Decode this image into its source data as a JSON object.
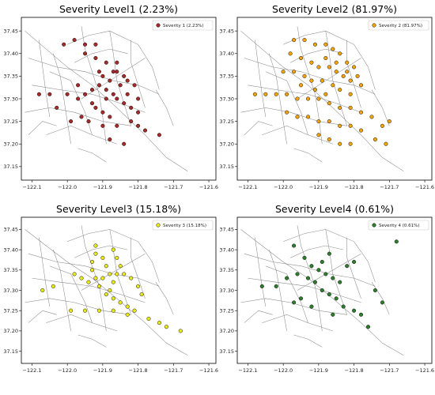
{
  "chart_data": [
    {
      "type": "scatter",
      "title": "Severity Level1 (2.23%)",
      "legend": "Severity 1 (2.23%)",
      "legend_position": "top-right",
      "color": "#a52a2a",
      "xlim": [
        -122.13,
        -121.58
      ],
      "ylim": [
        37.12,
        37.48
      ],
      "x_ticks": [
        "-122.1",
        "-122.0",
        "-121.9",
        "-121.8",
        "-121.7",
        "-121.6"
      ],
      "y_ticks": [
        "37.15",
        "37.20",
        "37.25",
        "37.30",
        "37.35",
        "37.40",
        "37.45"
      ],
      "grid": false,
      "points": [
        {
          "x": -122.01,
          "y": 37.42
        },
        {
          "x": -121.98,
          "y": 37.43
        },
        {
          "x": -121.95,
          "y": 37.42
        },
        {
          "x": -121.92,
          "y": 37.42
        },
        {
          "x": -121.95,
          "y": 37.4
        },
        {
          "x": -121.92,
          "y": 37.39
        },
        {
          "x": -121.89,
          "y": 37.38
        },
        {
          "x": -121.86,
          "y": 37.38
        },
        {
          "x": -121.86,
          "y": 37.36
        },
        {
          "x": -121.84,
          "y": 37.35
        },
        {
          "x": -121.83,
          "y": 37.34
        },
        {
          "x": -121.81,
          "y": 37.33
        },
        {
          "x": -121.9,
          "y": 37.35
        },
        {
          "x": -121.91,
          "y": 37.33
        },
        {
          "x": -121.93,
          "y": 37.32
        },
        {
          "x": -121.95,
          "y": 37.31
        },
        {
          "x": -121.97,
          "y": 37.3
        },
        {
          "x": -122.0,
          "y": 37.31
        },
        {
          "x": -122.05,
          "y": 37.31
        },
        {
          "x": -122.08,
          "y": 37.31
        },
        {
          "x": -121.89,
          "y": 37.32
        },
        {
          "x": -121.87,
          "y": 37.31
        },
        {
          "x": -121.86,
          "y": 37.3
        },
        {
          "x": -121.84,
          "y": 37.29
        },
        {
          "x": -121.82,
          "y": 37.28
        },
        {
          "x": -121.8,
          "y": 37.27
        },
        {
          "x": -121.92,
          "y": 37.28
        },
        {
          "x": -121.9,
          "y": 37.27
        },
        {
          "x": -121.88,
          "y": 37.26
        },
        {
          "x": -121.96,
          "y": 37.26
        },
        {
          "x": -121.99,
          "y": 37.25
        },
        {
          "x": -121.94,
          "y": 37.25
        },
        {
          "x": -121.9,
          "y": 37.24
        },
        {
          "x": -121.86,
          "y": 37.24
        },
        {
          "x": -121.82,
          "y": 37.25
        },
        {
          "x": -121.8,
          "y": 37.24
        },
        {
          "x": -121.78,
          "y": 37.23
        },
        {
          "x": -121.88,
          "y": 37.21
        },
        {
          "x": -121.84,
          "y": 37.2
        },
        {
          "x": -121.74,
          "y": 37.22
        },
        {
          "x": -121.91,
          "y": 37.36
        },
        {
          "x": -121.88,
          "y": 37.34
        },
        {
          "x": -121.85,
          "y": 37.33
        },
        {
          "x": -121.97,
          "y": 37.33
        },
        {
          "x": -122.03,
          "y": 37.28
        },
        {
          "x": -121.89,
          "y": 37.3
        },
        {
          "x": -121.93,
          "y": 37.29
        },
        {
          "x": -121.87,
          "y": 37.36
        },
        {
          "x": -121.83,
          "y": 37.31
        },
        {
          "x": -121.8,
          "y": 37.3
        }
      ]
    },
    {
      "type": "scatter",
      "title": "Severity Level2 (81.97%)",
      "legend": "Severity 2 (81.97%)",
      "legend_position": "top-right",
      "color": "#f0a30a",
      "xlim": [
        -122.13,
        -121.58
      ],
      "ylim": [
        37.12,
        37.48
      ],
      "x_ticks": [
        "-122.1",
        "-122.0",
        "-121.9",
        "-121.8",
        "-121.7",
        "-121.6"
      ],
      "y_ticks": [
        "37.15",
        "37.20",
        "37.25",
        "37.30",
        "37.35",
        "37.40",
        "37.45"
      ],
      "grid": false,
      "points": [
        {
          "x": -121.97,
          "y": 37.43
        },
        {
          "x": -121.94,
          "y": 37.43
        },
        {
          "x": -121.91,
          "y": 37.42
        },
        {
          "x": -121.88,
          "y": 37.42
        },
        {
          "x": -121.86,
          "y": 37.41
        },
        {
          "x": -121.84,
          "y": 37.4
        },
        {
          "x": -121.82,
          "y": 37.38
        },
        {
          "x": -121.8,
          "y": 37.37
        },
        {
          "x": -121.79,
          "y": 37.35
        },
        {
          "x": -121.78,
          "y": 37.33
        },
        {
          "x": -121.98,
          "y": 37.4
        },
        {
          "x": -121.95,
          "y": 37.39
        },
        {
          "x": -121.92,
          "y": 37.38
        },
        {
          "x": -121.9,
          "y": 37.37
        },
        {
          "x": -121.87,
          "y": 37.37
        },
        {
          "x": -121.85,
          "y": 37.36
        },
        {
          "x": -121.83,
          "y": 37.35
        },
        {
          "x": -121.81,
          "y": 37.34
        },
        {
          "x": -122.0,
          "y": 37.36
        },
        {
          "x": -121.97,
          "y": 37.36
        },
        {
          "x": -121.94,
          "y": 37.35
        },
        {
          "x": -121.92,
          "y": 37.34
        },
        {
          "x": -121.89,
          "y": 37.34
        },
        {
          "x": -121.86,
          "y": 37.33
        },
        {
          "x": -121.84,
          "y": 37.32
        },
        {
          "x": -121.81,
          "y": 37.31
        },
        {
          "x": -122.05,
          "y": 37.31
        },
        {
          "x": -122.02,
          "y": 37.31
        },
        {
          "x": -121.99,
          "y": 37.31
        },
        {
          "x": -121.96,
          "y": 37.3
        },
        {
          "x": -121.93,
          "y": 37.3
        },
        {
          "x": -121.9,
          "y": 37.3
        },
        {
          "x": -121.87,
          "y": 37.29
        },
        {
          "x": -121.84,
          "y": 37.28
        },
        {
          "x": -121.81,
          "y": 37.28
        },
        {
          "x": -121.78,
          "y": 37.27
        },
        {
          "x": -121.75,
          "y": 37.26
        },
        {
          "x": -121.99,
          "y": 37.27
        },
        {
          "x": -121.96,
          "y": 37.26
        },
        {
          "x": -121.93,
          "y": 37.26
        },
        {
          "x": -121.9,
          "y": 37.25
        },
        {
          "x": -121.87,
          "y": 37.25
        },
        {
          "x": -121.84,
          "y": 37.24
        },
        {
          "x": -121.81,
          "y": 37.24
        },
        {
          "x": -121.78,
          "y": 37.23
        },
        {
          "x": -121.9,
          "y": 37.22
        },
        {
          "x": -121.87,
          "y": 37.21
        },
        {
          "x": -121.84,
          "y": 37.2
        },
        {
          "x": -121.81,
          "y": 37.2
        },
        {
          "x": -121.72,
          "y": 37.24
        },
        {
          "x": -121.7,
          "y": 37.25
        },
        {
          "x": -121.74,
          "y": 37.21
        },
        {
          "x": -121.71,
          "y": 37.2
        },
        {
          "x": -122.08,
          "y": 37.31
        },
        {
          "x": -121.88,
          "y": 37.39
        },
        {
          "x": -121.85,
          "y": 37.38
        },
        {
          "x": -121.91,
          "y": 37.32
        },
        {
          "x": -121.88,
          "y": 37.31
        },
        {
          "x": -121.95,
          "y": 37.33
        },
        {
          "x": -121.82,
          "y": 37.36
        }
      ]
    },
    {
      "type": "scatter",
      "title": "Severity Level3 (15.18%)",
      "legend": "Severity 3 (15.18%)",
      "legend_position": "top-right",
      "color": "#e8e81a",
      "xlim": [
        -122.13,
        -121.58
      ],
      "ylim": [
        37.12,
        37.48
      ],
      "x_ticks": [
        "-122.1",
        "-122.0",
        "-121.9",
        "-121.8",
        "-121.7",
        "-121.6"
      ],
      "y_ticks": [
        "37.15",
        "37.20",
        "37.25",
        "37.30",
        "37.35",
        "37.40",
        "37.45"
      ],
      "grid": false,
      "points": [
        {
          "x": -121.92,
          "y": 37.41
        },
        {
          "x": -121.92,
          "y": 37.39
        },
        {
          "x": -121.93,
          "y": 37.37
        },
        {
          "x": -121.93,
          "y": 37.35
        },
        {
          "x": -121.92,
          "y": 37.33
        },
        {
          "x": -121.91,
          "y": 37.31
        },
        {
          "x": -121.89,
          "y": 37.29
        },
        {
          "x": -121.87,
          "y": 37.28
        },
        {
          "x": -121.85,
          "y": 37.27
        },
        {
          "x": -121.83,
          "y": 37.26
        },
        {
          "x": -121.81,
          "y": 37.25
        },
        {
          "x": -121.87,
          "y": 37.4
        },
        {
          "x": -121.86,
          "y": 37.38
        },
        {
          "x": -121.85,
          "y": 37.36
        },
        {
          "x": -121.86,
          "y": 37.34
        },
        {
          "x": -121.87,
          "y": 37.32
        },
        {
          "x": -121.88,
          "y": 37.3
        },
        {
          "x": -121.98,
          "y": 37.34
        },
        {
          "x": -121.96,
          "y": 37.33
        },
        {
          "x": -121.94,
          "y": 37.32
        },
        {
          "x": -121.9,
          "y": 37.33
        },
        {
          "x": -121.88,
          "y": 37.34
        },
        {
          "x": -122.04,
          "y": 37.31
        },
        {
          "x": -122.07,
          "y": 37.3
        },
        {
          "x": -121.99,
          "y": 37.25
        },
        {
          "x": -121.95,
          "y": 37.25
        },
        {
          "x": -121.91,
          "y": 37.25
        },
        {
          "x": -121.87,
          "y": 37.25
        },
        {
          "x": -121.83,
          "y": 37.24
        },
        {
          "x": -121.77,
          "y": 37.23
        },
        {
          "x": -121.74,
          "y": 37.22
        },
        {
          "x": -121.72,
          "y": 37.21
        },
        {
          "x": -121.68,
          "y": 37.2
        },
        {
          "x": -121.84,
          "y": 37.34
        },
        {
          "x": -121.82,
          "y": 37.33
        },
        {
          "x": -121.8,
          "y": 37.31
        },
        {
          "x": -121.79,
          "y": 37.29
        },
        {
          "x": -121.89,
          "y": 37.36
        },
        {
          "x": -121.9,
          "y": 37.38
        }
      ]
    },
    {
      "type": "scatter",
      "title": "Severity Level4 (0.61%)",
      "legend": "Severity 4 (0.61%)",
      "legend_position": "top-right",
      "color": "#2e7d2e",
      "xlim": [
        -122.13,
        -121.58
      ],
      "ylim": [
        37.12,
        37.48
      ],
      "x_ticks": [
        "-122.1",
        "-122.0",
        "-121.9",
        "-121.8",
        "-121.7",
        "-121.6"
      ],
      "y_ticks": [
        "37.15",
        "37.20",
        "37.25",
        "37.30",
        "37.35",
        "37.40",
        "37.45"
      ],
      "grid": false,
      "points": [
        {
          "x": -121.97,
          "y": 37.41
        },
        {
          "x": -121.94,
          "y": 37.38
        },
        {
          "x": -121.92,
          "y": 37.36
        },
        {
          "x": -121.9,
          "y": 37.35
        },
        {
          "x": -121.88,
          "y": 37.34
        },
        {
          "x": -121.86,
          "y": 37.33
        },
        {
          "x": -121.84,
          "y": 37.32
        },
        {
          "x": -121.82,
          "y": 37.36
        },
        {
          "x": -121.8,
          "y": 37.37
        },
        {
          "x": -121.96,
          "y": 37.34
        },
        {
          "x": -121.99,
          "y": 37.33
        },
        {
          "x": -122.02,
          "y": 37.31
        },
        {
          "x": -122.06,
          "y": 37.31
        },
        {
          "x": -121.93,
          "y": 37.33
        },
        {
          "x": -121.91,
          "y": 37.32
        },
        {
          "x": -121.89,
          "y": 37.3
        },
        {
          "x": -121.87,
          "y": 37.29
        },
        {
          "x": -121.85,
          "y": 37.28
        },
        {
          "x": -121.83,
          "y": 37.26
        },
        {
          "x": -121.8,
          "y": 37.25
        },
        {
          "x": -121.78,
          "y": 37.24
        },
        {
          "x": -121.95,
          "y": 37.28
        },
        {
          "x": -121.97,
          "y": 37.27
        },
        {
          "x": -121.92,
          "y": 37.26
        },
        {
          "x": -121.86,
          "y": 37.24
        },
        {
          "x": -121.74,
          "y": 37.3
        },
        {
          "x": -121.68,
          "y": 37.42
        },
        {
          "x": -121.72,
          "y": 37.27
        },
        {
          "x": -121.76,
          "y": 37.21
        },
        {
          "x": -121.89,
          "y": 37.37
        },
        {
          "x": -121.87,
          "y": 37.39
        }
      ]
    }
  ]
}
